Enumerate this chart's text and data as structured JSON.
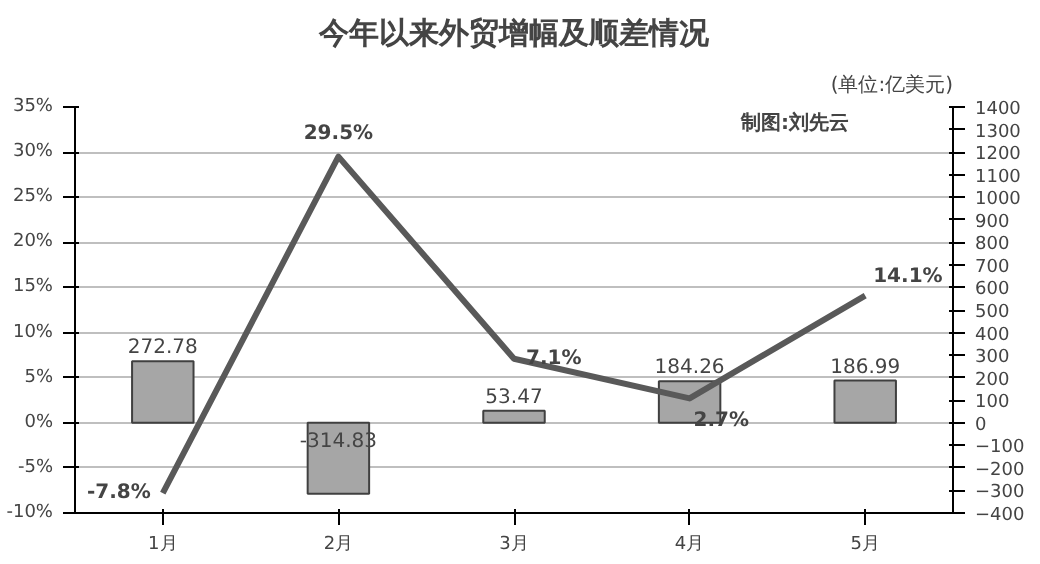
{
  "chart_data": {
    "type": "bar",
    "title": "今年以来外贸增幅及顺差情况",
    "subtitle": "(单位:亿美元)",
    "annotations": [
      "制图:刘先云"
    ],
    "categories": [
      "1月",
      "2月",
      "3月",
      "4月",
      "5月"
    ],
    "series": [
      {
        "axis": "y2",
        "color": "#a6a6a6",
        "values": [
          272.78,
          -314.83,
          53.47,
          184.26,
          186.99
        ],
        "value_labels": [
          "272.78",
          "-314.83",
          "53.47",
          "184.26",
          "186.99"
        ]
      },
      {
        "type": "line",
        "axis": "y",
        "color": "#595959",
        "values": [
          -7.8,
          29.5,
          7.1,
          2.7,
          14.1
        ],
        "value_labels": [
          "-7.8%",
          "29.5%",
          "7.1%",
          "2.7%",
          "14.1%"
        ]
      }
    ],
    "ylim": [
      -10,
      35
    ],
    "yticks": [
      {
        "value": -10,
        "label": "-10%"
      },
      {
        "value": -5,
        "label": "-5%"
      },
      {
        "value": 0,
        "label": "0%"
      },
      {
        "value": 5,
        "label": "5%"
      },
      {
        "value": 10,
        "label": "10%"
      },
      {
        "value": 15,
        "label": "15%"
      },
      {
        "value": 20,
        "label": "20%"
      },
      {
        "value": 25,
        "label": "25%"
      },
      {
        "value": 30,
        "label": "30%"
      },
      {
        "value": 35,
        "label": "35%"
      }
    ],
    "y2lim": [
      -400,
      1400
    ],
    "y2ticks": [
      -400,
      -300,
      -200,
      -100,
      0,
      100,
      200,
      300,
      400,
      500,
      600,
      700,
      800,
      900,
      1000,
      1100,
      1200,
      1300,
      1400
    ],
    "grid": "y"
  }
}
